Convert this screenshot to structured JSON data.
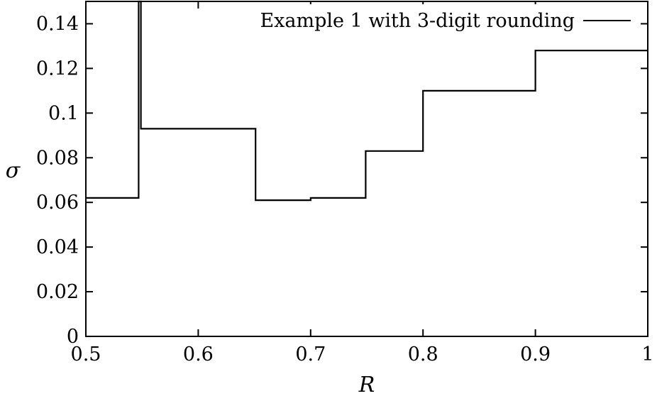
{
  "chart_data": {
    "type": "line",
    "step": true,
    "xlabel": "R",
    "ylabel": "σ",
    "xlim": [
      0.5,
      1
    ],
    "ylim": [
      0,
      0.15
    ],
    "x_ticks": [
      0.5,
      0.6,
      0.7,
      0.8,
      0.9,
      1
    ],
    "x_tick_labels": [
      "0.5",
      "0.6",
      "0.7",
      "0.8",
      "0.9",
      "1"
    ],
    "y_ticks": [
      0,
      0.02,
      0.04,
      0.06,
      0.08,
      0.1,
      0.12,
      0.14
    ],
    "y_tick_labels": [
      "0",
      "0.02",
      "0.04",
      "0.06",
      "0.08",
      "0.1",
      "0.12",
      "0.14"
    ],
    "grid": false,
    "legend_position": "top-right",
    "series": [
      {
        "name": "Example 1 with 3-digit rounding",
        "color": "#000000",
        "points": [
          {
            "x": 0.5,
            "y": 0.062
          },
          {
            "x": 0.547,
            "y": 0.062
          },
          {
            "x": 0.547,
            "y": 0.15
          },
          {
            "x": 0.549,
            "y": 0.15
          },
          {
            "x": 0.549,
            "y": 0.093
          },
          {
            "x": 0.651,
            "y": 0.093
          },
          {
            "x": 0.651,
            "y": 0.061
          },
          {
            "x": 0.7,
            "y": 0.061
          },
          {
            "x": 0.7,
            "y": 0.062
          },
          {
            "x": 0.749,
            "y": 0.062
          },
          {
            "x": 0.749,
            "y": 0.083
          },
          {
            "x": 0.8,
            "y": 0.083
          },
          {
            "x": 0.8,
            "y": 0.11
          },
          {
            "x": 0.9,
            "y": 0.11
          },
          {
            "x": 0.9,
            "y": 0.128
          },
          {
            "x": 1.0,
            "y": 0.128
          }
        ]
      }
    ]
  }
}
